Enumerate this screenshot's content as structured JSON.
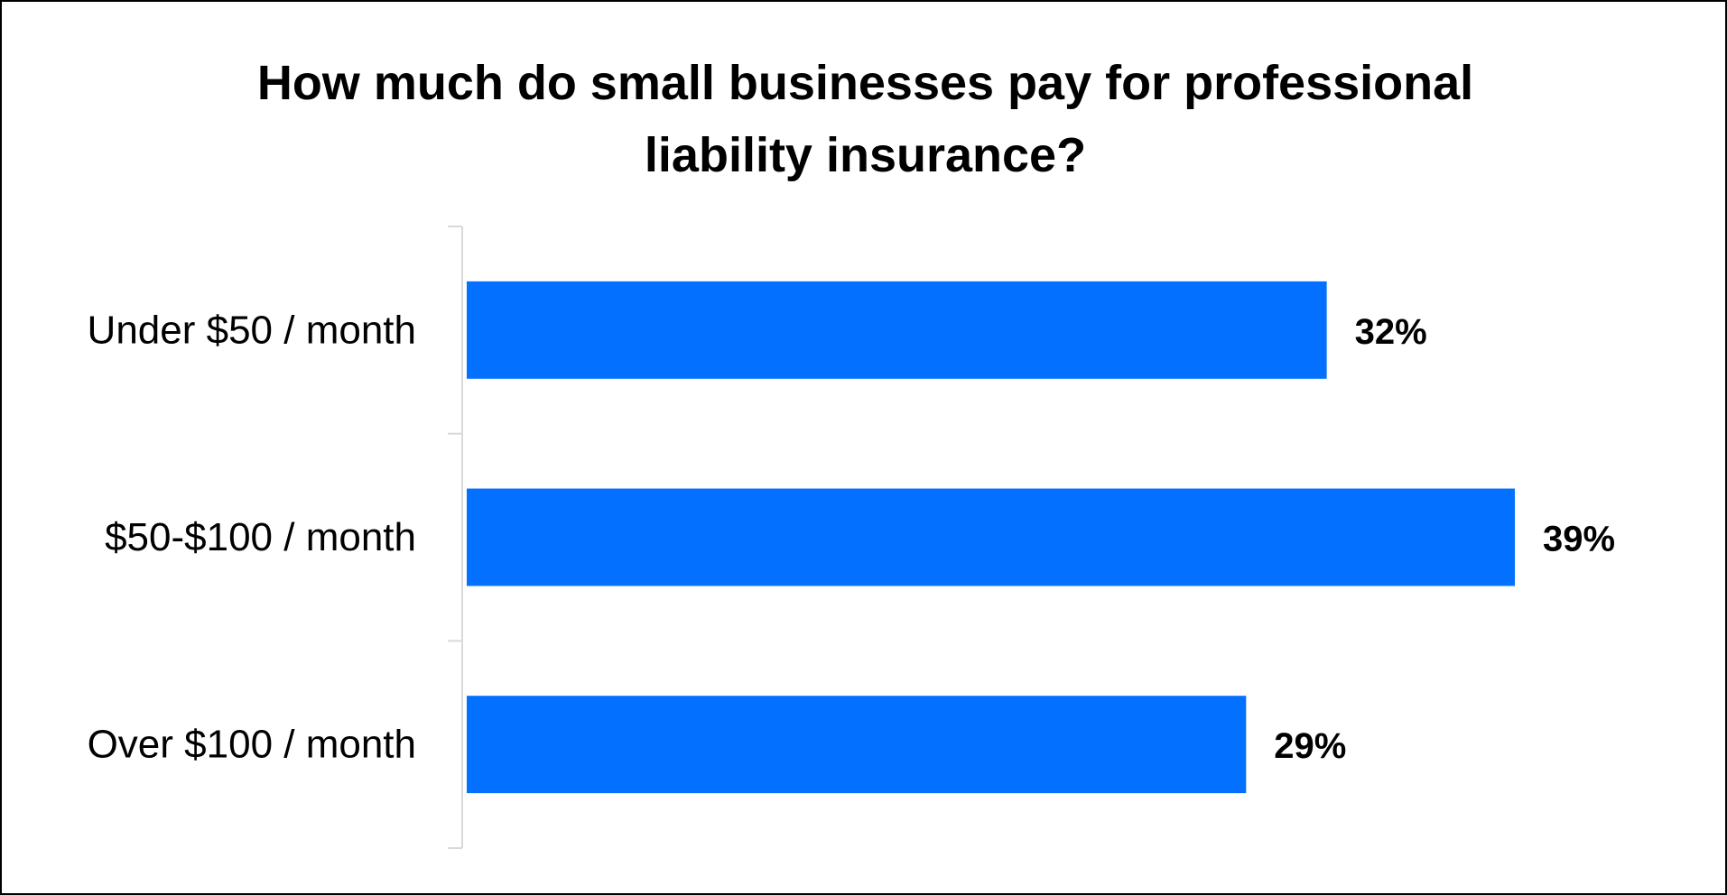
{
  "chart_data": {
    "type": "bar",
    "orientation": "horizontal",
    "title": "How much do small businesses pay for professional liability insurance?",
    "title_lines": [
      "How much do small businesses pay for professional",
      "liability insurance?"
    ],
    "categories": [
      "Under $50 / month",
      "$50-$100 / month",
      "Over $100 / month"
    ],
    "values": [
      32,
      39,
      29
    ],
    "data_labels": [
      "32%",
      "39%",
      "29%"
    ],
    "unit": "%",
    "xlim": [
      0,
      39
    ],
    "xlabel": "",
    "ylabel": "",
    "grid": false,
    "legend": "none",
    "bar_color": "#0370FF",
    "axis_color": "#D9D9D9"
  }
}
